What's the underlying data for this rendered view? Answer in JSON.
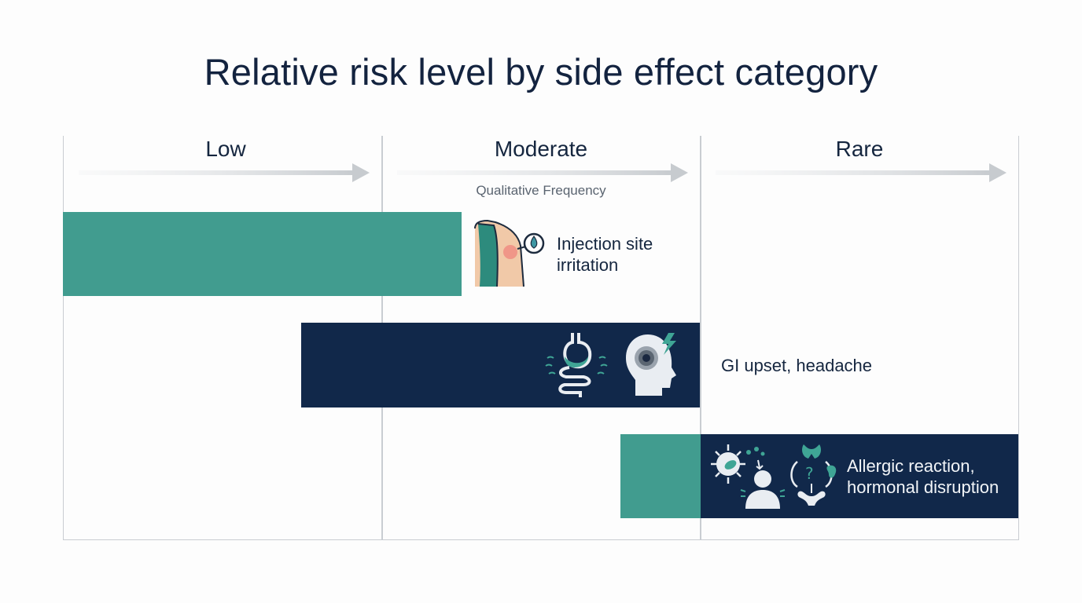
{
  "title": "Relative risk level by side effect category",
  "columns": [
    {
      "label": "Low"
    },
    {
      "label": "Moderate"
    },
    {
      "label": "Rare"
    }
  ],
  "subheading": "Qualitative Frequency",
  "rows": [
    {
      "label": "Injection site irritation",
      "label_line1": "Injection site",
      "label_line2": "irritation",
      "icons": [
        "shoulder-injection-icon",
        "droplet-icon"
      ]
    },
    {
      "label": "GI upset, headache",
      "icons": [
        "stomach-intestine-icon",
        "head-pain-icon"
      ]
    },
    {
      "label": "Allergic reaction, hormonal disruption",
      "label_line1": "Allergic reaction,",
      "label_line2": "hormonal disruption",
      "icons": [
        "virus-icon",
        "person-allergy-icon",
        "hormone-organs-icon"
      ]
    }
  ],
  "colors": {
    "teal": "#419c8f",
    "navy": "#11284a",
    "text": "#14253f",
    "grid": "#c9cdd2"
  }
}
